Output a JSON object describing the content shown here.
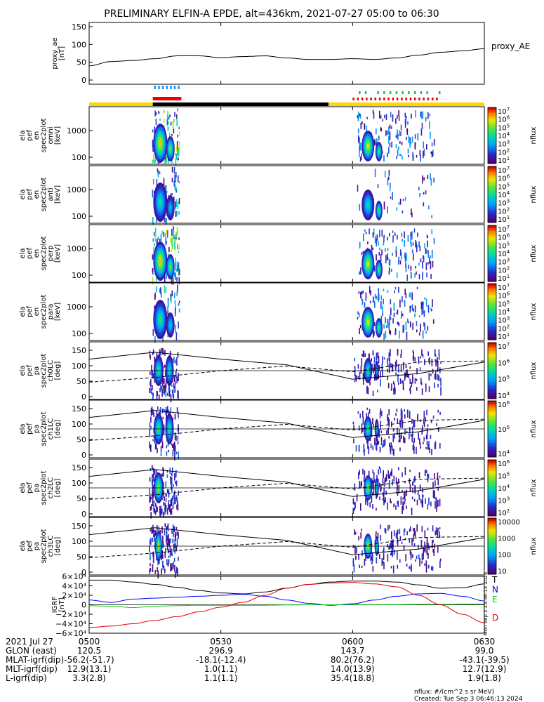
{
  "title": "PRELIMINARY ELFIN-A EPDE, alt=436km, 2021-07-27 05:00 to 06:30",
  "colors": {
    "flag_yellow": "#ffd700",
    "flag_black": "#000000",
    "flag_red": "#ee0000",
    "flag_blue": "#1e90ff",
    "flag_green": "#00cc44",
    "igrf_T": "#000000",
    "igrf_N": "#0000ff",
    "igrf_E": "#00cc00",
    "igrf_D": "#dd0000"
  },
  "chart_data": [
    {
      "type": "line",
      "panel": "proxy_ae",
      "ylabel_lines": [
        "proxy_ae",
        "[nT]"
      ],
      "legend": "proxy_AE",
      "ylim": [
        0,
        150
      ],
      "yticks": [
        "150",
        "100",
        "50",
        "0"
      ],
      "x_minutes": [
        0,
        5,
        10,
        15,
        20,
        25,
        30,
        35,
        40,
        45,
        50,
        55,
        60,
        65,
        70,
        75,
        80,
        85,
        90
      ],
      "values": [
        40,
        52,
        55,
        60,
        68,
        68,
        63,
        66,
        68,
        62,
        58,
        58,
        60,
        58,
        62,
        70,
        78,
        82,
        88
      ]
    },
    {
      "type": "heatmap",
      "panel": "omni",
      "ylabel_lines": [
        "ela",
        "pef",
        "en",
        "spec2plot",
        "omni",
        "[keV]"
      ],
      "yticks": [
        "1000",
        "100"
      ],
      "zlabel": "nflux",
      "zticks": [
        "10^7",
        "10^6",
        "10^5",
        "10^4",
        "10^3",
        "10^2",
        "10^1"
      ]
    },
    {
      "type": "heatmap",
      "panel": "anti",
      "ylabel_lines": [
        "ela",
        "pef",
        "en",
        "spec2plot",
        "anti",
        "[keV]"
      ],
      "yticks": [
        "1000",
        "100"
      ],
      "zlabel": "nflux",
      "zticks": [
        "10^7",
        "10^6",
        "10^5",
        "10^4",
        "10^3",
        "10^2",
        "10^1"
      ]
    },
    {
      "type": "heatmap",
      "panel": "perp",
      "ylabel_lines": [
        "ela",
        "pef",
        "en",
        "spec2plot",
        "perp",
        "[keV]"
      ],
      "yticks": [
        "1000",
        "100"
      ],
      "zlabel": "nflux",
      "zticks": [
        "10^7",
        "10^6",
        "10^5",
        "10^4",
        "10^3",
        "10^2",
        "10^1"
      ]
    },
    {
      "type": "heatmap",
      "panel": "para",
      "ylabel_lines": [
        "ela",
        "pef",
        "en",
        "spec2plot",
        "para",
        "[keV]"
      ],
      "yticks": [
        "1000",
        "100"
      ],
      "zlabel": "nflux",
      "zticks": [
        "10^7",
        "10^6",
        "10^5",
        "10^4",
        "10^3",
        "10^2",
        "10^1"
      ]
    },
    {
      "type": "heatmap",
      "panel": "ch0LC",
      "ylabel_lines": [
        "ela",
        "pef",
        "pa",
        "spec2plot",
        "ch0LC",
        "[deg]"
      ],
      "yticks": [
        "150",
        "100",
        "50",
        "0"
      ],
      "zlabel": "nflux",
      "zticks": [
        "10^7",
        "10^6",
        "10^5",
        "10^4"
      ]
    },
    {
      "type": "heatmap",
      "panel": "ch1LC",
      "ylabel_lines": [
        "ela",
        "pef",
        "pa",
        "spec2plot",
        "ch1LC",
        "[deg]"
      ],
      "yticks": [
        "150",
        "100",
        "50",
        "0"
      ],
      "zlabel": "nflux",
      "zticks": [
        "10^6",
        "10^5",
        "10^4"
      ]
    },
    {
      "type": "heatmap",
      "panel": "ch2LC",
      "ylabel_lines": [
        "ela",
        "pef",
        "pa",
        "spec2plot",
        "ch2LC",
        "[deg]"
      ],
      "yticks": [
        "150",
        "100",
        "50",
        "0"
      ],
      "zlabel": "nflux",
      "zticks": [
        "10^6",
        "10^5",
        "10^4",
        "10^3",
        "10^2"
      ]
    },
    {
      "type": "heatmap",
      "panel": "ch3LC",
      "ylabel_lines": [
        "ela",
        "pef",
        "pa",
        "spec2plot",
        "ch3LC",
        "[deg]"
      ],
      "yticks": [
        "150",
        "100",
        "50",
        "0"
      ],
      "zlabel": "nflux",
      "zticks": [
        "10000",
        "1000",
        "100",
        "10"
      ]
    },
    {
      "type": "line",
      "panel": "igrf",
      "ylabel_lines": [
        "IGRF",
        "[nT]"
      ],
      "ylim": [
        -60000,
        60000
      ],
      "yticks": [
        "6×10⁴",
        "4×10⁴",
        "2×10⁴",
        "0",
        "−2×10⁴",
        "−4×10⁴",
        "−6×10⁴"
      ],
      "x_minutes": [
        0,
        5,
        10,
        15,
        20,
        25,
        30,
        35,
        40,
        45,
        50,
        55,
        60,
        65,
        70,
        75,
        80,
        85,
        90
      ],
      "series": [
        {
          "name": "T",
          "values": [
            52000,
            52000,
            48000,
            43000,
            37000,
            30000,
            25000,
            23000,
            27000,
            35000,
            43000,
            48000,
            50000,
            50000,
            48000,
            42000,
            35000,
            36000,
            44000
          ]
        },
        {
          "name": "N",
          "values": [
            10000,
            5000,
            12000,
            14000,
            16000,
            18000,
            20000,
            22000,
            18000,
            10000,
            3000,
            -1000,
            2000,
            10000,
            18000,
            23000,
            24000,
            18000,
            8000
          ]
        },
        {
          "name": "E",
          "values": [
            -2000,
            -3000,
            -6000,
            -3000,
            -2000,
            -1000,
            -1000,
            -1000,
            -1000,
            -500,
            0,
            0,
            500,
            500,
            500,
            1000,
            1000,
            1500,
            1500
          ]
        },
        {
          "name": "D",
          "values": [
            -48000,
            -45000,
            -40000,
            -33000,
            -25000,
            -15000,
            -5000,
            5000,
            20000,
            35000,
            43000,
            46000,
            47000,
            44000,
            38000,
            20000,
            0,
            -20000,
            -38000
          ]
        }
      ]
    }
  ],
  "xaxis": {
    "ticks": [
      "0500",
      "0530",
      "0600",
      "0630"
    ],
    "rows": [
      {
        "label": "2021 Jul 27",
        "values": [
          "0500",
          "0530",
          "0600",
          "0630"
        ]
      },
      {
        "label": "GLON (east)",
        "values": [
          "120.5",
          "296.9",
          "143.7",
          "99.0"
        ]
      },
      {
        "label": "MLAT-igrf(dip)",
        "values": [
          "-56.2(-51.7)",
          "-18.1(-12.4)",
          "80.2(76.2)",
          "-43.1(-39.5)"
        ]
      },
      {
        "label": "MLT-igrf(dip)",
        "values": [
          "12.9(13.1)",
          "1.0(1.1)",
          "14.0(13.9)",
          "12.7(12.9)"
        ]
      },
      {
        "label": "L-igrf(dip)",
        "values": [
          "3.3(2.8)",
          "1.1(1.1)",
          "35.4(18.8)",
          "1.9(1.8)"
        ]
      }
    ]
  },
  "footer": {
    "units": "nflux: #/(cm^2 s sr MeV)",
    "created": "Created: Tue Sep  3 06:46:13 2024",
    "stamp": "Mon Sep  2 23:46:13 2024"
  }
}
